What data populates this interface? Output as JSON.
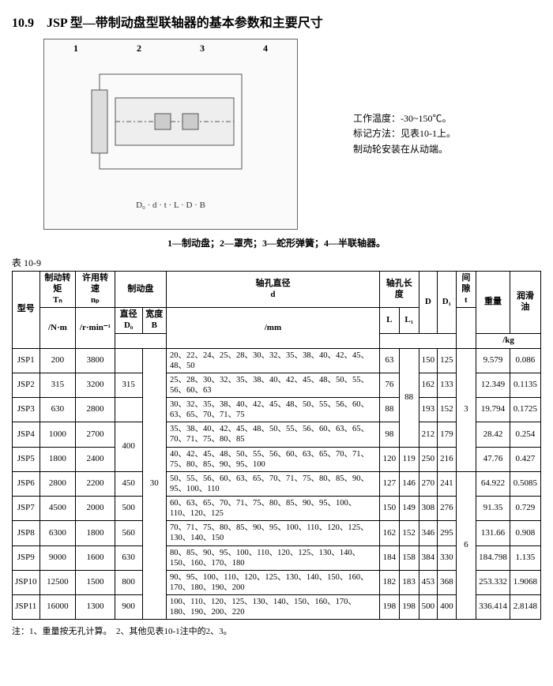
{
  "title": "10.9　JSP 型—带制动盘型联轴器的基本参数和主要尺寸",
  "figure": {
    "callouts": [
      "1",
      "2",
      "3",
      "4"
    ],
    "dims": [
      "D₀",
      "d",
      "t",
      "L",
      "L",
      "D",
      "B",
      "D₁"
    ],
    "sideNotes": [
      "工作温度：-30~150℃。",
      "标记方法：见表10-1上。",
      "制动轮安装在从动端。"
    ]
  },
  "caption": "1—制动盘；2—罩壳；3—蛇形弹簧；4—半联轴器。",
  "tableLabel": "表 10-9",
  "headers": {
    "model": "型号",
    "torque": "制动转矩",
    "torqueSym": "Tₙ",
    "torqueUnit": "/N·m",
    "speed": "许用转速",
    "speedSym": "nₚ",
    "speedUnit": "/r·min⁻¹",
    "brakeDisc": "制动盘",
    "diaD0": "直径D₀",
    "widthB": "宽度B",
    "boreDia": "轴孔直径",
    "boreDiaSym": "d",
    "boreLen": "轴孔长度",
    "L": "L",
    "L1": "L₁",
    "D": "D",
    "D1": "D₁",
    "gap": "间隙",
    "gapSym": "t",
    "weight": "重量",
    "oil": "润滑油",
    "mm": "/mm",
    "kg": "/kg"
  },
  "rows": [
    {
      "model": "JSP1",
      "Tn": "200",
      "np": "3800",
      "D0": "",
      "B": "",
      "d": "20、22、24、25、28、30、32、35、38、40、42、45、48、50",
      "L": "63",
      "L1": "",
      "D": "150",
      "D1": "125",
      "t": "",
      "wt": "9.579",
      "oil": "0.086"
    },
    {
      "model": "JSP2",
      "Tn": "315",
      "np": "3200",
      "D0": "315",
      "B": "",
      "d": "25、28、30、32、35、38、40、42、45、48、50、55、56、60、63",
      "L": "76",
      "L1": "",
      "D": "162",
      "D1": "133",
      "t": "",
      "wt": "12.349",
      "oil": "0.1135"
    },
    {
      "model": "JSP3",
      "Tn": "630",
      "np": "2800",
      "D0": "",
      "B": "",
      "d": "30、32、35、38、40、42、45、48、50、55、56、60、63、65、70、71、75",
      "L": "88",
      "L1": "88",
      "D": "193",
      "D1": "152",
      "t": "3",
      "wt": "19.794",
      "oil": "0.1725"
    },
    {
      "model": "JSP4",
      "Tn": "1000",
      "np": "2700",
      "D0": "",
      "B": "",
      "d": "35、38、40、42、45、48、50、55、56、60、63、65、70、71、75、80、85",
      "L": "98",
      "L1": "",
      "D": "212",
      "D1": "179",
      "t": "",
      "wt": "28.42",
      "oil": "0.254"
    },
    {
      "model": "JSP5",
      "Tn": "1800",
      "np": "2400",
      "D0": "400",
      "B": "",
      "d": "40、42、45、48、50、55、56、60、63、65、70、71、75、80、85、90、95、100",
      "L": "120",
      "L1": "119",
      "D": "250",
      "D1": "216",
      "t": "",
      "wt": "47.76",
      "oil": "0.427"
    },
    {
      "model": "JSP6",
      "Tn": "2800",
      "np": "2200",
      "D0": "450",
      "B": "30",
      "d": "50、55、56、60、63、65、70、71、75、80、85、90、95、100、110",
      "L": "127",
      "L1": "146",
      "D": "270",
      "D1": "241",
      "t": "",
      "wt": "64.922",
      "oil": "0.5085"
    },
    {
      "model": "JSP7",
      "Tn": "4500",
      "np": "2000",
      "D0": "500",
      "B": "",
      "d": "60、63、65、70、71、75、80、85、90、95、100、110、120、125",
      "L": "150",
      "L1": "149",
      "D": "308",
      "D1": "276",
      "t": "",
      "wt": "91.35",
      "oil": "0.729"
    },
    {
      "model": "JSP8",
      "Tn": "6300",
      "np": "1800",
      "D0": "560",
      "B": "",
      "d": "70、71、75、80、85、90、95、100、110、120、125、130、140、150",
      "L": "162",
      "L1": "152",
      "D": "346",
      "D1": "295",
      "t": "6",
      "wt": "131.66",
      "oil": "0.908"
    },
    {
      "model": "JSP9",
      "Tn": "9000",
      "np": "1600",
      "D0": "630",
      "B": "",
      "d": "80、85、90、95、100、110、120、125、130、140、150、160、170、180",
      "L": "184",
      "L1": "158",
      "D": "384",
      "D1": "330",
      "t": "",
      "wt": "184.798",
      "oil": "1.135"
    },
    {
      "model": "JSP10",
      "Tn": "12500",
      "np": "1500",
      "D0": "800",
      "B": "",
      "d": "90、95、100、110、120、125、130、140、150、160、170、180、190、200",
      "L": "182",
      "L1": "183",
      "D": "453",
      "D1": "368",
      "t": "",
      "wt": "253.332",
      "oil": "1.9068"
    },
    {
      "model": "JSP11",
      "Tn": "16000",
      "np": "1300",
      "D0": "900",
      "B": "",
      "d": "100、110、120、125、130、140、150、160、170、180、190、200、220",
      "L": "198",
      "L1": "198",
      "D": "500",
      "D1": "400",
      "t": "",
      "wt": "336.414",
      "oil": "2.8148"
    }
  ],
  "footnote": "注：1、重量按无孔计算。　2、其他见表10-1注中的2、3。",
  "spans": {
    "D0_315_rows": 2,
    "D0_400_rows": 2,
    "L1_88_rows": 4,
    "t_3_rows": 5,
    "t_6_rows": 6,
    "B_30_rows": 11
  }
}
